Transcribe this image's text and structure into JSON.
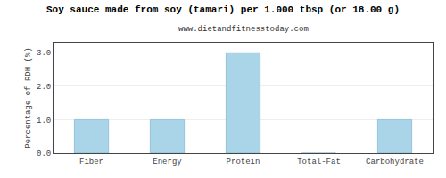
{
  "chart_data": {
    "type": "bar",
    "title": "Soy sauce made from soy (tamari) per 1.000 tbsp (or 18.00 g)",
    "subtitle": "www.dietandfitnesstoday.com",
    "categories": [
      "Fiber",
      "Energy",
      "Protein",
      "Total-Fat",
      "Carbohydrate"
    ],
    "values": [
      1.0,
      1.0,
      3.0,
      0.0,
      1.0
    ],
    "color": "#aad4e8",
    "ylabel": "Percentage of RDH (%)",
    "ylim": [
      0,
      3.3
    ],
    "yticks": [
      {
        "value": 0.0,
        "label": "0.0"
      },
      {
        "value": 1.0,
        "label": "1.0"
      },
      {
        "value": 2.0,
        "label": "2.0"
      },
      {
        "value": 3.0,
        "label": "3.0"
      }
    ],
    "grid": true
  }
}
